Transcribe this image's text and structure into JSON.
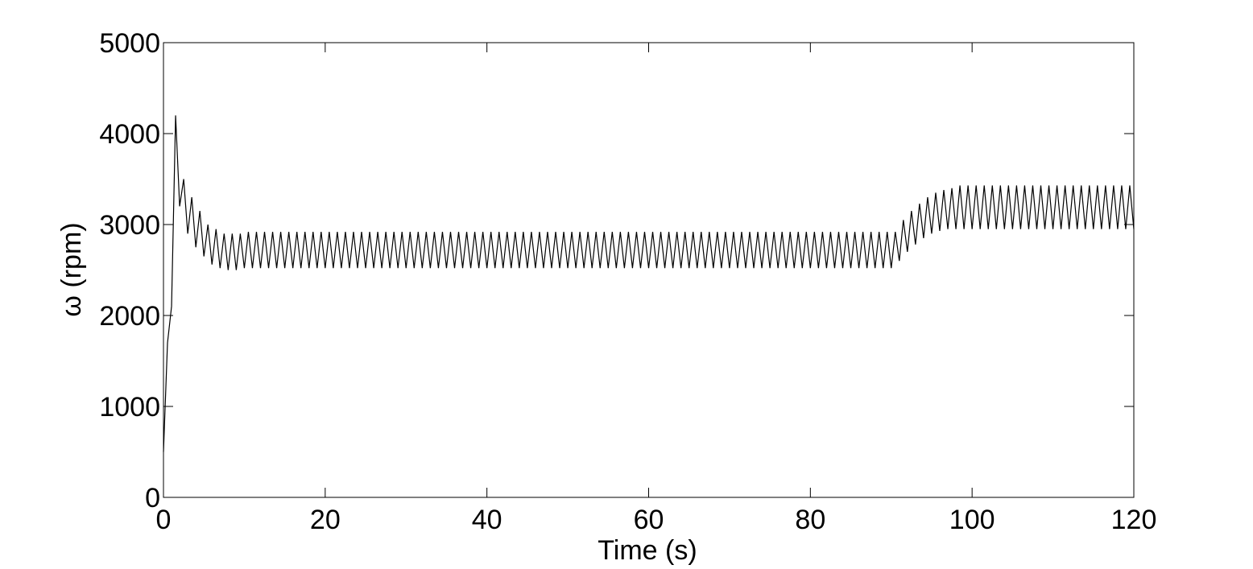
{
  "chart_data": {
    "type": "line",
    "x_label": "Time (s)",
    "y_label": "ω (rpm)",
    "xlim": [
      0,
      120
    ],
    "xticks": [
      0,
      20,
      40,
      60,
      80,
      100,
      120
    ],
    "ylim": [
      0,
      5000
    ],
    "yticks": [
      0,
      1000,
      2000,
      3000,
      4000,
      5000
    ],
    "color": "#000000",
    "x": [
      0,
      0.5,
      1,
      1.5,
      2,
      2.5,
      3,
      3.5,
      4,
      4.5,
      5,
      5.5,
      6,
      6.5,
      7,
      7.5,
      8,
      8.5,
      9,
      9.5,
      10,
      10.5,
      11,
      11.5,
      12,
      12.5,
      13,
      13.5,
      14,
      14.5,
      15,
      15.5,
      16,
      16.5,
      17,
      17.5,
      18,
      18.5,
      19,
      19.5,
      20,
      20.5,
      21,
      21.5,
      22,
      22.5,
      23,
      23.5,
      24,
      24.5,
      25,
      25.5,
      26,
      26.5,
      27,
      27.5,
      28,
      28.5,
      29,
      29.5,
      30,
      30.5,
      31,
      31.5,
      32,
      32.5,
      33,
      33.5,
      34,
      34.5,
      35,
      35.5,
      36,
      36.5,
      37,
      37.5,
      38,
      38.5,
      39,
      39.5,
      40,
      40.5,
      41,
      41.5,
      42,
      42.5,
      43,
      43.5,
      44,
      44.5,
      45,
      45.5,
      46,
      46.5,
      47,
      47.5,
      48,
      48.5,
      49,
      49.5,
      50,
      50.5,
      51,
      51.5,
      52,
      52.5,
      53,
      53.5,
      54,
      54.5,
      55,
      55.5,
      56,
      56.5,
      57,
      57.5,
      58,
      58.5,
      59,
      59.5,
      60,
      60.5,
      61,
      61.5,
      62,
      62.5,
      63,
      63.5,
      64,
      64.5,
      65,
      65.5,
      66,
      66.5,
      67,
      67.5,
      68,
      68.5,
      69,
      69.5,
      70,
      70.5,
      71,
      71.5,
      72,
      72.5,
      73,
      73.5,
      74,
      74.5,
      75,
      75.5,
      76,
      76.5,
      77,
      77.5,
      78,
      78.5,
      79,
      79.5,
      80,
      80.5,
      81,
      81.5,
      82,
      82.5,
      83,
      83.5,
      84,
      84.5,
      85,
      85.5,
      86,
      86.5,
      87,
      87.5,
      88,
      88.5,
      89,
      89.5,
      90,
      90.5,
      91,
      91.5,
      92,
      92.5,
      93,
      93.5,
      94,
      94.5,
      95,
      95.5,
      96,
      96.5,
      97,
      97.5,
      98,
      98.5,
      99,
      99.5,
      100,
      100.5,
      101,
      101.5,
      102,
      102.5,
      103,
      103.5,
      104,
      104.5,
      105,
      105.5,
      106,
      106.5,
      107,
      107.5,
      108,
      108.5,
      109,
      109.5,
      110,
      110.5,
      111,
      111.5,
      112,
      112.5,
      113,
      113.5,
      114,
      114.5,
      115,
      115.5,
      116,
      116.5,
      117,
      117.5,
      118,
      118.5,
      119,
      119.5,
      120
    ],
    "values": [
      500,
      1700,
      2100,
      4200,
      3200,
      3500,
      2900,
      3300,
      2750,
      3150,
      2650,
      3000,
      2560,
      2950,
      2520,
      2900,
      2500,
      2900,
      2500,
      2900,
      2520,
      2920,
      2520,
      2920,
      2520,
      2920,
      2520,
      2920,
      2520,
      2920,
      2520,
      2920,
      2520,
      2920,
      2520,
      2920,
      2520,
      2920,
      2520,
      2920,
      2520,
      2920,
      2520,
      2920,
      2520,
      2920,
      2520,
      2920,
      2520,
      2920,
      2520,
      2920,
      2520,
      2920,
      2520,
      2920,
      2520,
      2920,
      2520,
      2920,
      2520,
      2920,
      2520,
      2920,
      2520,
      2920,
      2520,
      2920,
      2520,
      2920,
      2520,
      2920,
      2520,
      2920,
      2520,
      2920,
      2520,
      2920,
      2520,
      2920,
      2520,
      2920,
      2520,
      2920,
      2520,
      2920,
      2520,
      2920,
      2520,
      2920,
      2520,
      2920,
      2520,
      2920,
      2520,
      2920,
      2520,
      2920,
      2520,
      2920,
      2520,
      2920,
      2520,
      2920,
      2520,
      2920,
      2520,
      2920,
      2520,
      2920,
      2520,
      2920,
      2520,
      2920,
      2520,
      2920,
      2520,
      2920,
      2520,
      2920,
      2520,
      2920,
      2520,
      2920,
      2520,
      2920,
      2520,
      2920,
      2520,
      2920,
      2520,
      2920,
      2520,
      2920,
      2520,
      2920,
      2520,
      2920,
      2520,
      2920,
      2520,
      2920,
      2520,
      2920,
      2520,
      2920,
      2520,
      2920,
      2520,
      2920,
      2520,
      2920,
      2520,
      2920,
      2520,
      2920,
      2520,
      2920,
      2520,
      2920,
      2520,
      2920,
      2520,
      2920,
      2520,
      2920,
      2520,
      2920,
      2520,
      2920,
      2520,
      2920,
      2520,
      2920,
      2520,
      2920,
      2520,
      2920,
      2520,
      2920,
      2520,
      2920,
      2600,
      3050,
      2700,
      3150,
      2780,
      3230,
      2850,
      3300,
      2900,
      3350,
      2930,
      3380,
      2950,
      3400,
      2950,
      3430,
      2950,
      3430,
      2950,
      3430,
      2950,
      3430,
      2950,
      3430,
      2950,
      3430,
      2950,
      3430,
      2950,
      3430,
      2950,
      3430,
      2950,
      3430,
      2950,
      3430,
      2950,
      3430,
      2950,
      3430,
      2950,
      3430,
      2950,
      3430,
      2950,
      3430,
      2950,
      3430,
      2950,
      3430,
      2950,
      3430,
      2950,
      3430,
      2950,
      3430,
      2950,
      3430,
      2950
    ]
  }
}
